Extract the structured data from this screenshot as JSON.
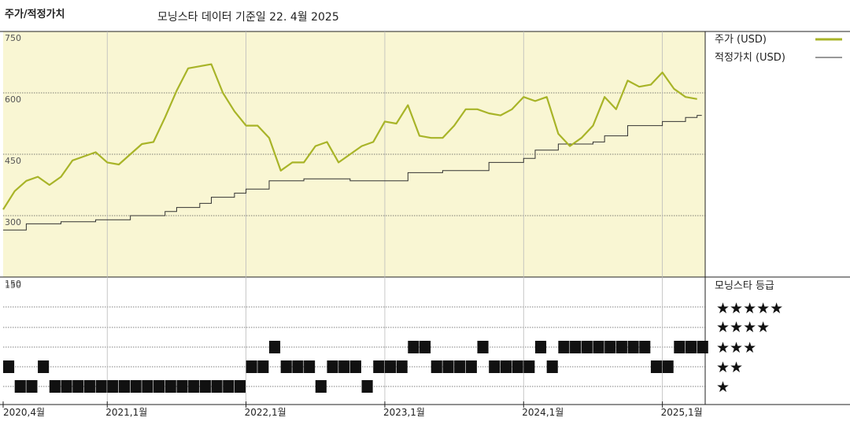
{
  "header": {
    "title": "주가/적정가치",
    "subtitle": "모닝스타 데이터 기준일 22. 4월 2025"
  },
  "legend": {
    "price": "주가 (USD)",
    "fair_value": "적정가치 (USD)",
    "rating_title": "모닝스타 등급",
    "stars": [
      "★★★★★",
      "★★★★",
      "★★★",
      "★★",
      "★"
    ]
  },
  "colors": {
    "plot_background": "#f9f6d3",
    "price_line": "#a8b428",
    "fair_value_line": "#333333",
    "rating_marks": "#111111"
  },
  "chart_data": [
    {
      "type": "line",
      "title": "주가/적정가치",
      "xlabel": "",
      "ylabel": "",
      "ylim": [
        150,
        750
      ],
      "x_ticks": [
        "2020,4월",
        "2021,1월",
        "2022,1월",
        "2023,1월",
        "2024,1월",
        "2025,1월"
      ],
      "y_ticks": [
        150,
        300,
        450,
        600,
        750
      ],
      "series": [
        {
          "name": "주가 (USD)",
          "x": [
            "2020-04",
            "2020-05",
            "2020-06",
            "2020-07",
            "2020-08",
            "2020-09",
            "2020-10",
            "2020-11",
            "2020-12",
            "2021-01",
            "2021-02",
            "2021-03",
            "2021-04",
            "2021-05",
            "2021-06",
            "2021-07",
            "2021-08",
            "2021-09",
            "2021-10",
            "2021-11",
            "2021-12",
            "2022-01",
            "2022-02",
            "2022-03",
            "2022-04",
            "2022-05",
            "2022-06",
            "2022-07",
            "2022-08",
            "2022-09",
            "2022-10",
            "2022-11",
            "2022-12",
            "2023-01",
            "2023-02",
            "2023-03",
            "2023-04",
            "2023-05",
            "2023-06",
            "2023-07",
            "2023-08",
            "2023-09",
            "2023-10",
            "2023-11",
            "2023-12",
            "2024-01",
            "2024-02",
            "2024-03",
            "2024-04",
            "2024-05",
            "2024-06",
            "2024-07",
            "2024-08",
            "2024-09",
            "2024-10",
            "2024-11",
            "2024-12",
            "2025-01",
            "2025-02",
            "2025-03",
            "2025-04"
          ],
          "values": [
            315,
            360,
            385,
            395,
            375,
            395,
            435,
            445,
            455,
            430,
            425,
            450,
            475,
            480,
            540,
            605,
            660,
            665,
            670,
            600,
            555,
            520,
            520,
            490,
            410,
            430,
            430,
            470,
            480,
            430,
            450,
            470,
            480,
            530,
            525,
            570,
            495,
            490,
            490,
            520,
            560,
            560,
            550,
            545,
            560,
            590,
            580,
            590,
            500,
            470,
            490,
            520,
            590,
            560,
            630,
            615,
            620,
            650,
            610,
            590,
            585
          ]
        },
        {
          "name": "적정가치 (USD)",
          "x": [
            "2020-04",
            "2020-06",
            "2020-09",
            "2020-12",
            "2021-03",
            "2021-06",
            "2021-07",
            "2021-09",
            "2021-10",
            "2021-12",
            "2022-01",
            "2022-03",
            "2022-06",
            "2022-10",
            "2023-01",
            "2023-03",
            "2023-06",
            "2023-10",
            "2024-01",
            "2024-02",
            "2024-04",
            "2024-07",
            "2024-08",
            "2024-10",
            "2025-01",
            "2025-03",
            "2025-04"
          ],
          "values": [
            265,
            280,
            285,
            290,
            300,
            310,
            320,
            330,
            345,
            355,
            365,
            385,
            390,
            385,
            385,
            405,
            410,
            430,
            440,
            460,
            475,
            480,
            495,
            520,
            530,
            540,
            545
          ]
        }
      ]
    },
    {
      "type": "bar",
      "title": "모닝스타 등급",
      "ylabel": "",
      "rating_levels": [
        5,
        4,
        3,
        2,
        1
      ],
      "x": [
        "2020-04",
        "2020-05",
        "2020-06",
        "2020-07",
        "2020-08",
        "2020-09",
        "2020-10",
        "2020-11",
        "2020-12",
        "2021-01",
        "2021-02",
        "2021-03",
        "2021-04",
        "2021-05",
        "2021-06",
        "2021-07",
        "2021-08",
        "2021-09",
        "2021-10",
        "2021-11",
        "2021-12",
        "2022-01",
        "2022-02",
        "2022-03",
        "2022-04",
        "2022-05",
        "2022-06",
        "2022-07",
        "2022-08",
        "2022-09",
        "2022-10",
        "2022-11",
        "2022-12",
        "2023-01",
        "2023-02",
        "2023-03",
        "2023-04",
        "2023-05",
        "2023-06",
        "2023-07",
        "2023-08",
        "2023-09",
        "2023-10",
        "2023-11",
        "2023-12",
        "2024-01",
        "2024-02",
        "2024-03",
        "2024-04",
        "2024-05",
        "2024-06",
        "2024-07",
        "2024-08",
        "2024-09",
        "2024-10",
        "2024-11",
        "2024-12",
        "2025-01",
        "2025-02",
        "2025-03",
        "2025-04"
      ],
      "values": [
        2,
        1,
        1,
        2,
        1,
        1,
        1,
        1,
        1,
        1,
        1,
        1,
        1,
        1,
        1,
        1,
        1,
        1,
        1,
        1,
        1,
        2,
        2,
        3,
        2,
        2,
        2,
        1,
        2,
        2,
        2,
        1,
        2,
        2,
        2,
        3,
        3,
        2,
        2,
        2,
        2,
        3,
        2,
        2,
        2,
        2,
        3,
        2,
        3,
        3,
        3,
        3,
        3,
        3,
        3,
        3,
        2,
        2,
        3,
        3,
        3
      ]
    }
  ]
}
